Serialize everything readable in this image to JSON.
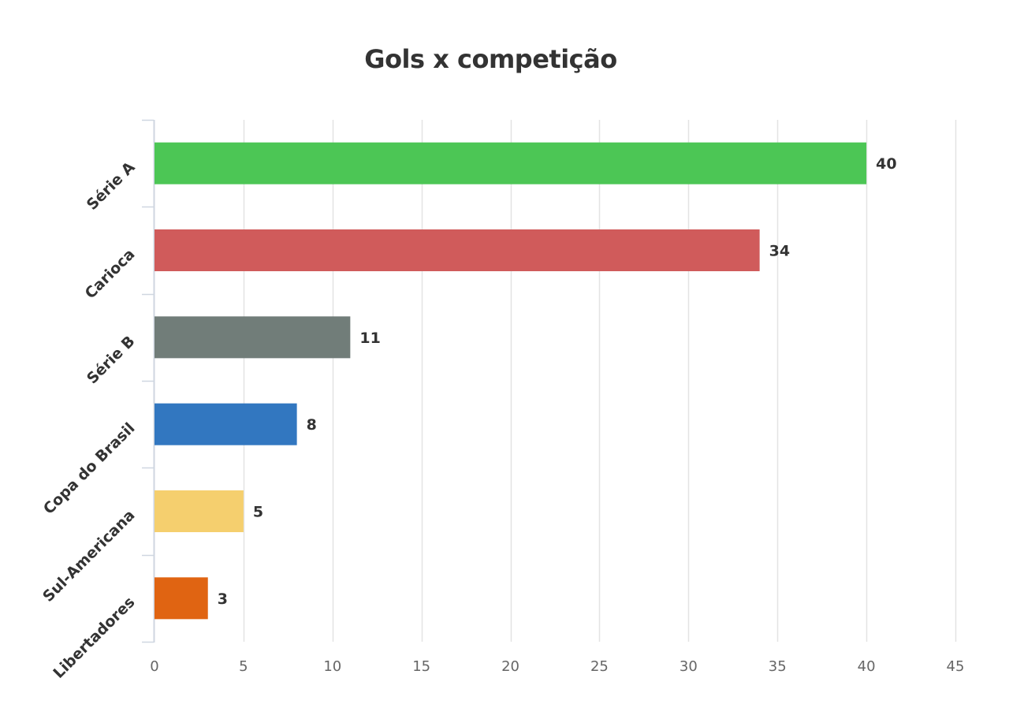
{
  "chart_data": {
    "type": "bar",
    "orientation": "horizontal",
    "title": "Gols x competição",
    "xlabel": "",
    "ylabel": "",
    "categories": [
      "Série A",
      "Carioca",
      "Série B",
      "Copa do Brasil",
      "Sul-Americana",
      "Libertadores"
    ],
    "values": [
      40,
      34,
      11,
      8,
      5,
      3
    ],
    "colors": [
      "#4cc655",
      "#d05b5b",
      "#717d79",
      "#3277c0",
      "#f5cf6e",
      "#e06412"
    ],
    "xlim": [
      0,
      45
    ],
    "xticks": [
      0,
      5,
      10,
      15,
      20,
      25,
      30,
      35,
      40,
      45
    ],
    "grid": true,
    "data_labels": true,
    "legend": false
  }
}
